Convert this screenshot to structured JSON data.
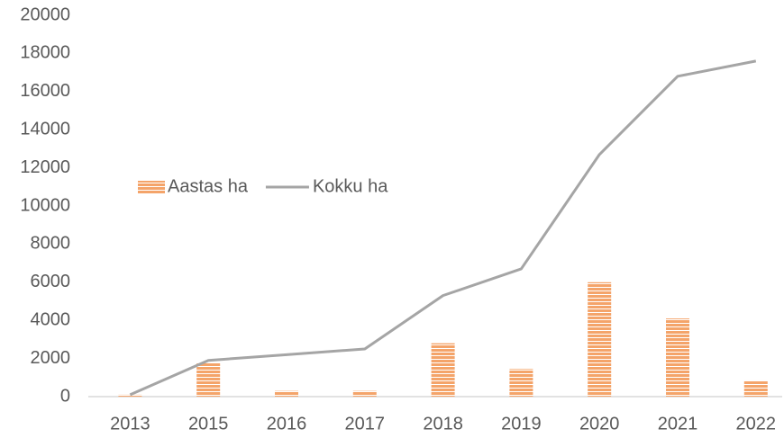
{
  "chart_data": {
    "type": "bar",
    "categories": [
      "2013",
      "2015",
      "2016",
      "2017",
      "2018",
      "2019",
      "2020",
      "2021",
      "2022"
    ],
    "series": [
      {
        "name": "Aastas ha",
        "type": "bar",
        "color": "#f4a46a",
        "values": [
          100,
          1750,
          300,
          300,
          2800,
          1450,
          6000,
          4100,
          850
        ]
      },
      {
        "name": "Kokku ha",
        "type": "line",
        "color": "#a5a5a5",
        "values": [
          100,
          1900,
          2200,
          2500,
          5300,
          6700,
          12700,
          16800,
          17600
        ]
      }
    ],
    "ylim": [
      0,
      20000
    ],
    "yticks": [
      0,
      2000,
      4000,
      6000,
      8000,
      10000,
      12000,
      14000,
      16000,
      18000,
      20000
    ],
    "grid": false,
    "legend": "left"
  }
}
